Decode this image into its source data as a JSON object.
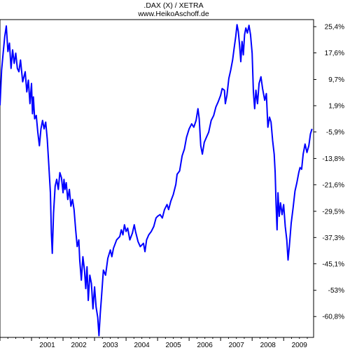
{
  "chart_data": {
    "type": "line",
    "title": ".DAX (X) / XETRA",
    "subtitle": "www.HeikoAschoff.de",
    "xlabel": "",
    "ylabel": "",
    "grid": false,
    "legend": "none",
    "y_axis_side": "right",
    "ylim": [
      -67.0,
      27.5
    ],
    "yticks": [
      25.4,
      17.6,
      9.7,
      1.9,
      -5.9,
      -13.8,
      -21.6,
      -29.5,
      -37.3,
      -45.1,
      -53.0,
      -60.8
    ],
    "ytick_labels": [
      "25,4%",
      "17,6%",
      "9,7%",
      "1,9%",
      "-5,9%",
      "-13,8%",
      "-21,6%",
      "-29,5%",
      "-37,3%",
      "-45,1%",
      "-53%",
      "-60,8%"
    ],
    "xlim": [
      2000.0,
      2009.95
    ],
    "xticks": [
      "2001",
      "2002",
      "2003",
      "2004",
      "2005",
      "2006",
      "2007",
      "2008",
      "2009"
    ],
    "series": [
      {
        "color": "#0000ff",
        "points": [
          [
            2000.0,
            2.0
          ],
          [
            2000.05,
            12.5
          ],
          [
            2000.1,
            17.5
          ],
          [
            2000.15,
            22.5
          ],
          [
            2000.2,
            25.6
          ],
          [
            2000.25,
            18.0
          ],
          [
            2000.3,
            20.5
          ],
          [
            2000.35,
            13.0
          ],
          [
            2000.4,
            18.5
          ],
          [
            2000.45,
            14.5
          ],
          [
            2000.5,
            17.5
          ],
          [
            2000.55,
            13.0
          ],
          [
            2000.6,
            12.0
          ],
          [
            2000.65,
            15.5
          ],
          [
            2000.72,
            9.0
          ],
          [
            2000.8,
            12.0
          ],
          [
            2000.85,
            6.0
          ],
          [
            2000.9,
            9.5
          ],
          [
            2000.95,
            2.5
          ],
          [
            2001.0,
            8.5
          ],
          [
            2001.03,
            -0.5
          ],
          [
            2001.06,
            4.5
          ],
          [
            2001.1,
            -2.0
          ],
          [
            2001.15,
            -1.0
          ],
          [
            2001.2,
            -6.0
          ],
          [
            2001.25,
            -10.0
          ],
          [
            2001.3,
            -5.0
          ],
          [
            2001.35,
            -2.5
          ],
          [
            2001.4,
            -5.0
          ],
          [
            2001.45,
            -3.0
          ],
          [
            2001.5,
            -8.0
          ],
          [
            2001.55,
            -16.0
          ],
          [
            2001.6,
            -24.0
          ],
          [
            2001.63,
            -36.0
          ],
          [
            2001.66,
            -42.0
          ],
          [
            2001.7,
            -30.0
          ],
          [
            2001.75,
            -22.0
          ],
          [
            2001.8,
            -20.0
          ],
          [
            2001.85,
            -23.0
          ],
          [
            2001.9,
            -18.0
          ],
          [
            2001.95,
            -19.5
          ],
          [
            2002.0,
            -24.0
          ],
          [
            2002.03,
            -20.0
          ],
          [
            2002.06,
            -23.0
          ],
          [
            2002.1,
            -21.0
          ],
          [
            2002.15,
            -26.0
          ],
          [
            2002.2,
            -23.0
          ],
          [
            2002.25,
            -28.0
          ],
          [
            2002.3,
            -26.0
          ],
          [
            2002.35,
            -29.0
          ],
          [
            2002.4,
            -35.0
          ],
          [
            2002.45,
            -40.0
          ],
          [
            2002.5,
            -38.0
          ],
          [
            2002.53,
            -44.0
          ],
          [
            2002.58,
            -50.0
          ],
          [
            2002.63,
            -43.0
          ],
          [
            2002.68,
            -47.0
          ],
          [
            2002.72,
            -52.5
          ],
          [
            2002.76,
            -46.0
          ],
          [
            2002.8,
            -56.0
          ],
          [
            2002.85,
            -48.5
          ],
          [
            2002.9,
            -51.0
          ],
          [
            2002.95,
            -58.5
          ],
          [
            2003.0,
            -52.0
          ],
          [
            2003.05,
            -58.0
          ],
          [
            2003.1,
            -61.0
          ],
          [
            2003.14,
            -66.5
          ],
          [
            2003.18,
            -60.0
          ],
          [
            2003.22,
            -55.0
          ],
          [
            2003.28,
            -47.0
          ],
          [
            2003.35,
            -48.5
          ],
          [
            2003.42,
            -43.5
          ],
          [
            2003.5,
            -41.0
          ],
          [
            2003.55,
            -43.0
          ],
          [
            2003.6,
            -40.5
          ],
          [
            2003.7,
            -38.0
          ],
          [
            2003.8,
            -37.0
          ],
          [
            2003.85,
            -35.0
          ],
          [
            2003.9,
            -36.5
          ],
          [
            2003.95,
            -33.5
          ],
          [
            2004.0,
            -35.5
          ],
          [
            2004.05,
            -34.5
          ],
          [
            2004.12,
            -38.0
          ],
          [
            2004.2,
            -36.0
          ],
          [
            2004.26,
            -33.5
          ],
          [
            2004.3,
            -35.5
          ],
          [
            2004.38,
            -38.5
          ],
          [
            2004.45,
            -40.0
          ],
          [
            2004.55,
            -39.0
          ],
          [
            2004.6,
            -41.5
          ],
          [
            2004.65,
            -38.0
          ],
          [
            2004.72,
            -36.5
          ],
          [
            2004.8,
            -35.5
          ],
          [
            2004.88,
            -34.0
          ],
          [
            2004.95,
            -31.5
          ],
          [
            2005.0,
            -31.0
          ],
          [
            2005.08,
            -30.5
          ],
          [
            2005.15,
            -31.5
          ],
          [
            2005.22,
            -29.0
          ],
          [
            2005.3,
            -27.5
          ],
          [
            2005.35,
            -29.0
          ],
          [
            2005.42,
            -26.5
          ],
          [
            2005.5,
            -24.5
          ],
          [
            2005.58,
            -21.5
          ],
          [
            2005.62,
            -18.5
          ],
          [
            2005.7,
            -17.5
          ],
          [
            2005.78,
            -13.0
          ],
          [
            2005.85,
            -11.0
          ],
          [
            2005.92,
            -7.5
          ],
          [
            2006.0,
            -5.0
          ],
          [
            2006.08,
            -3.5
          ],
          [
            2006.15,
            -4.5
          ],
          [
            2006.22,
            -2.5
          ],
          [
            2006.28,
            1.0
          ],
          [
            2006.32,
            -2.0
          ],
          [
            2006.37,
            -10.0
          ],
          [
            2006.42,
            -12.5
          ],
          [
            2006.48,
            -9.0
          ],
          [
            2006.55,
            -7.5
          ],
          [
            2006.62,
            -6.0
          ],
          [
            2006.7,
            -2.5
          ],
          [
            2006.78,
            -1.0
          ],
          [
            2006.85,
            1.5
          ],
          [
            2006.92,
            3.0
          ],
          [
            2007.0,
            5.0
          ],
          [
            2007.05,
            7.0
          ],
          [
            2007.12,
            6.5
          ],
          [
            2007.15,
            2.5
          ],
          [
            2007.2,
            5.0
          ],
          [
            2007.26,
            10.0
          ],
          [
            2007.32,
            12.5
          ],
          [
            2007.38,
            15.5
          ],
          [
            2007.43,
            19.0
          ],
          [
            2007.48,
            22.5
          ],
          [
            2007.52,
            26.0
          ],
          [
            2007.56,
            24.0
          ],
          [
            2007.6,
            20.0
          ],
          [
            2007.64,
            15.0
          ],
          [
            2007.68,
            21.0
          ],
          [
            2007.72,
            17.0
          ],
          [
            2007.76,
            23.0
          ],
          [
            2007.8,
            25.0
          ],
          [
            2007.85,
            23.5
          ],
          [
            2007.9,
            25.8
          ],
          [
            2007.95,
            23.0
          ],
          [
            2008.0,
            17.5
          ],
          [
            2008.04,
            6.0
          ],
          [
            2008.08,
            1.0
          ],
          [
            2008.12,
            6.5
          ],
          [
            2008.17,
            2.5
          ],
          [
            2008.22,
            8.5
          ],
          [
            2008.28,
            10.5
          ],
          [
            2008.33,
            7.0
          ],
          [
            2008.4,
            3.5
          ],
          [
            2008.45,
            5.5
          ],
          [
            2008.5,
            -4.5
          ],
          [
            2008.55,
            -1.5
          ],
          [
            2008.6,
            -3.0
          ],
          [
            2008.65,
            -8.5
          ],
          [
            2008.7,
            -12.5
          ],
          [
            2008.73,
            -18.0
          ],
          [
            2008.76,
            -27.5
          ],
          [
            2008.79,
            -35.0
          ],
          [
            2008.82,
            -24.0
          ],
          [
            2008.86,
            -31.0
          ],
          [
            2008.9,
            -27.0
          ],
          [
            2008.95,
            -30.5
          ],
          [
            2009.0,
            -27.5
          ],
          [
            2009.05,
            -34.0
          ],
          [
            2009.1,
            -38.0
          ],
          [
            2009.14,
            -44.0
          ],
          [
            2009.18,
            -40.0
          ],
          [
            2009.24,
            -33.0
          ],
          [
            2009.3,
            -28.5
          ],
          [
            2009.36,
            -23.5
          ],
          [
            2009.42,
            -21.0
          ],
          [
            2009.48,
            -18.0
          ],
          [
            2009.52,
            -16.5
          ],
          [
            2009.57,
            -17.0
          ],
          [
            2009.62,
            -12.5
          ],
          [
            2009.68,
            -9.5
          ],
          [
            2009.74,
            -12.0
          ],
          [
            2009.8,
            -10.0
          ],
          [
            2009.85,
            -6.5
          ],
          [
            2009.9,
            -5.0
          ]
        ]
      }
    ]
  }
}
